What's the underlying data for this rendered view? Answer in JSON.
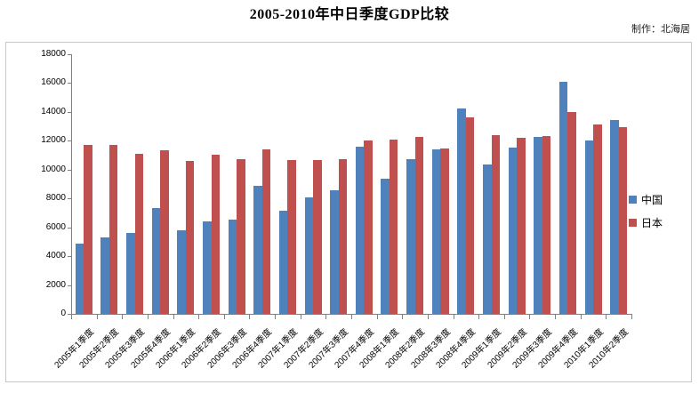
{
  "title": "2005-2010年中日季度GDP比较",
  "credit": "制作：北海居",
  "colors": {
    "china": "#4F81BD",
    "japan": "#C0504D",
    "axis": "#808080",
    "frame_border": "#C8C8C8"
  },
  "legend": {
    "items": [
      {
        "label": "中国",
        "color": "#4F81BD"
      },
      {
        "label": "日本",
        "color": "#C0504D"
      }
    ]
  },
  "chart_data": {
    "type": "bar",
    "title": "2005-2010年中日季度GDP比较",
    "xlabel": "",
    "ylabel": "",
    "ylim": [
      0,
      18000
    ],
    "yticks": [
      0,
      2000,
      4000,
      6000,
      8000,
      10000,
      12000,
      14000,
      16000,
      18000
    ],
    "grid": false,
    "legend_position": "right",
    "categories": [
      "2005年1季度",
      "2005年2季度",
      "2005年3季度",
      "2005年4季度",
      "2006年1季度",
      "2006年2季度",
      "2006年3季度",
      "2006年4季度",
      "2007年1季度",
      "2007年2季度",
      "2007年3季度",
      "2007年4季度",
      "2008年1季度",
      "2008年2季度",
      "2008年3季度",
      "2008年4季度",
      "2009年1季度",
      "2009年2季度",
      "2009年3季度",
      "2009年4季度",
      "2010年1季度",
      "2010年2季度"
    ],
    "series": [
      {
        "name": "中国",
        "color": "#4F81BD",
        "values": [
          4850,
          5300,
          5600,
          7350,
          5800,
          6400,
          6550,
          8850,
          7150,
          8100,
          8550,
          11600,
          9350,
          10700,
          11400,
          14250,
          10350,
          11500,
          12250,
          16100,
          12050,
          13450
        ]
      },
      {
        "name": "日本",
        "color": "#C0504D",
        "values": [
          11700,
          11700,
          11100,
          11350,
          10600,
          11050,
          10700,
          11400,
          10650,
          10650,
          10700,
          12050,
          12100,
          12250,
          11450,
          13600,
          12400,
          12200,
          12350,
          14000,
          13100,
          12950
        ]
      }
    ]
  }
}
